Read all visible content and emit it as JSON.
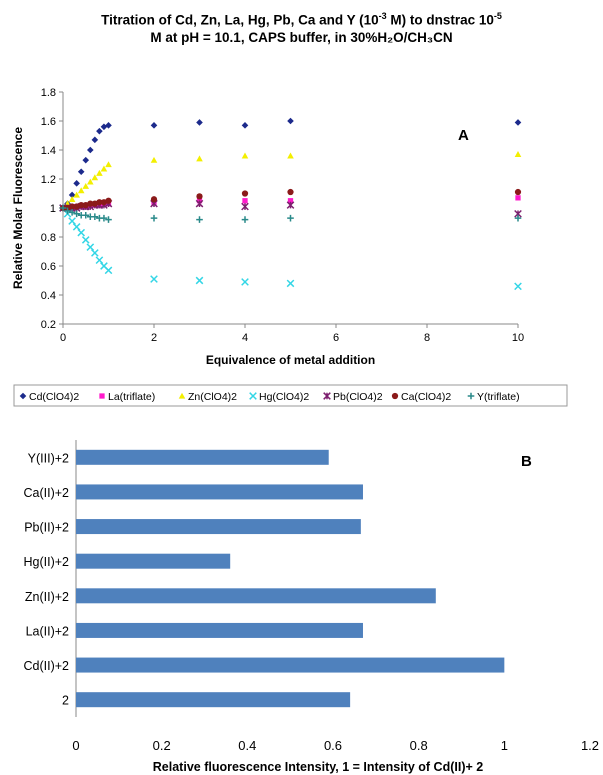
{
  "title": {
    "line1_pre": "Titration of Cd, Zn, La, Hg, Pb, Ca and Y (10",
    "line1_exp1": "-3",
    "line1_mid": " M) to dnstrac 10",
    "line1_exp2": "-5",
    "line2": "M at pH = 10.1, CAPS buffer, in 30%H₂O/CH₃CN"
  },
  "chart_data": [
    {
      "type": "scatter",
      "panel_label": "A",
      "xlabel": "Equivalence of metal addition",
      "ylabel": "Relative Molar Fluorescence",
      "xlim": [
        0,
        10
      ],
      "ylim": [
        0.2,
        1.8
      ],
      "xticks": [
        0,
        2,
        4,
        6,
        8,
        10
      ],
      "yticks": [
        0.2,
        0.4,
        0.6,
        0.8,
        1,
        1.2,
        1.4,
        1.6,
        1.8
      ],
      "ytick_labels": [
        "0.2",
        "0.4",
        "0.6",
        "0.8",
        "1",
        "1.2",
        "1.4",
        "1.6",
        "1.8"
      ],
      "grid": false,
      "legend_position": "bottom",
      "series": [
        {
          "name": "Cd(ClO4)2",
          "marker": "diamond",
          "color": "#1c2a8c",
          "x": [
            0,
            0.1,
            0.2,
            0.3,
            0.4,
            0.5,
            0.6,
            0.7,
            0.8,
            0.9,
            1.0,
            2,
            3,
            4,
            5,
            10
          ],
          "y": [
            1.0,
            1.03,
            1.09,
            1.17,
            1.25,
            1.33,
            1.4,
            1.47,
            1.53,
            1.56,
            1.57,
            1.57,
            1.59,
            1.57,
            1.6,
            1.59
          ]
        },
        {
          "name": "La(triflate)",
          "marker": "square",
          "color": "#ff1acb",
          "x": [
            0,
            0.1,
            0.2,
            0.3,
            0.4,
            0.5,
            0.6,
            0.7,
            0.8,
            0.9,
            1.0,
            2,
            3,
            4,
            5,
            10
          ],
          "y": [
            1.0,
            1.0,
            1.0,
            1.01,
            1.01,
            1.01,
            1.02,
            1.02,
            1.02,
            1.03,
            1.03,
            1.04,
            1.05,
            1.05,
            1.05,
            1.07
          ]
        },
        {
          "name": "Zn(ClO4)2",
          "marker": "triangle",
          "color": "#f3ef00",
          "x": [
            0,
            0.1,
            0.2,
            0.3,
            0.4,
            0.5,
            0.6,
            0.7,
            0.8,
            0.9,
            1.0,
            2,
            3,
            4,
            5,
            10
          ],
          "y": [
            1.0,
            1.03,
            1.06,
            1.09,
            1.12,
            1.15,
            1.18,
            1.21,
            1.24,
            1.27,
            1.3,
            1.33,
            1.34,
            1.36,
            1.36,
            1.37
          ]
        },
        {
          "name": "Hg(ClO4)2",
          "marker": "x",
          "color": "#33d6e6",
          "x": [
            0,
            0.1,
            0.2,
            0.3,
            0.4,
            0.5,
            0.6,
            0.7,
            0.8,
            0.9,
            1.0,
            2,
            3,
            4,
            5,
            10
          ],
          "y": [
            1.0,
            0.96,
            0.91,
            0.87,
            0.83,
            0.78,
            0.73,
            0.69,
            0.64,
            0.6,
            0.57,
            0.51,
            0.5,
            0.49,
            0.48,
            0.46
          ]
        },
        {
          "name": "Pb(ClO4)2",
          "marker": "star",
          "color": "#7d1f6e",
          "x": [
            0,
            0.1,
            0.2,
            0.3,
            0.4,
            0.5,
            0.6,
            0.7,
            0.8,
            0.9,
            1.0,
            2,
            3,
            4,
            5,
            10
          ],
          "y": [
            1.0,
            1.0,
            1.0,
            1.0,
            1.01,
            1.01,
            1.01,
            1.02,
            1.02,
            1.02,
            1.03,
            1.03,
            1.03,
            1.01,
            1.02,
            0.96
          ]
        },
        {
          "name": "Ca(ClO4)2",
          "marker": "circle",
          "color": "#8b1a1a",
          "x": [
            0,
            0.1,
            0.2,
            0.3,
            0.4,
            0.5,
            0.6,
            0.7,
            0.8,
            0.9,
            1.0,
            2,
            3,
            4,
            5,
            10
          ],
          "y": [
            1.0,
            1.0,
            1.01,
            1.01,
            1.02,
            1.02,
            1.03,
            1.03,
            1.04,
            1.04,
            1.05,
            1.06,
            1.08,
            1.1,
            1.11,
            1.11
          ]
        },
        {
          "name": "Y(triflate)",
          "marker": "plus",
          "color": "#2a8a8a",
          "x": [
            0,
            0.1,
            0.2,
            0.3,
            0.4,
            0.5,
            0.6,
            0.7,
            0.8,
            0.9,
            1.0,
            2,
            3,
            4,
            5,
            10
          ],
          "y": [
            1.0,
            0.98,
            0.97,
            0.96,
            0.95,
            0.95,
            0.94,
            0.94,
            0.93,
            0.93,
            0.92,
            0.93,
            0.92,
            0.92,
            0.93,
            0.93
          ]
        }
      ]
    },
    {
      "type": "bar",
      "orientation": "horizontal",
      "panel_label": "B",
      "xlabel": "Relative fluorescence Intensity, 1 = Intensity of Cd(II)+ 2",
      "xlim": [
        0,
        1.2
      ],
      "xticks": [
        0,
        0.2,
        0.4,
        0.6,
        0.8,
        1,
        1.2
      ],
      "xtick_labels": [
        "0",
        "0.2",
        "0.4",
        "0.6",
        "0.8",
        "1",
        "1.2"
      ],
      "bar_color": "#4f81bd",
      "grid": false,
      "categories": [
        "Y(III)+2",
        "Ca(II)+2",
        "Pb(II)+2",
        "Hg(II)+2",
        "Zn(II)+2",
        "La(II)+2",
        "Cd(II)+2",
        "2"
      ],
      "values": [
        0.59,
        0.67,
        0.665,
        0.36,
        0.84,
        0.67,
        1.0,
        0.64
      ]
    }
  ]
}
